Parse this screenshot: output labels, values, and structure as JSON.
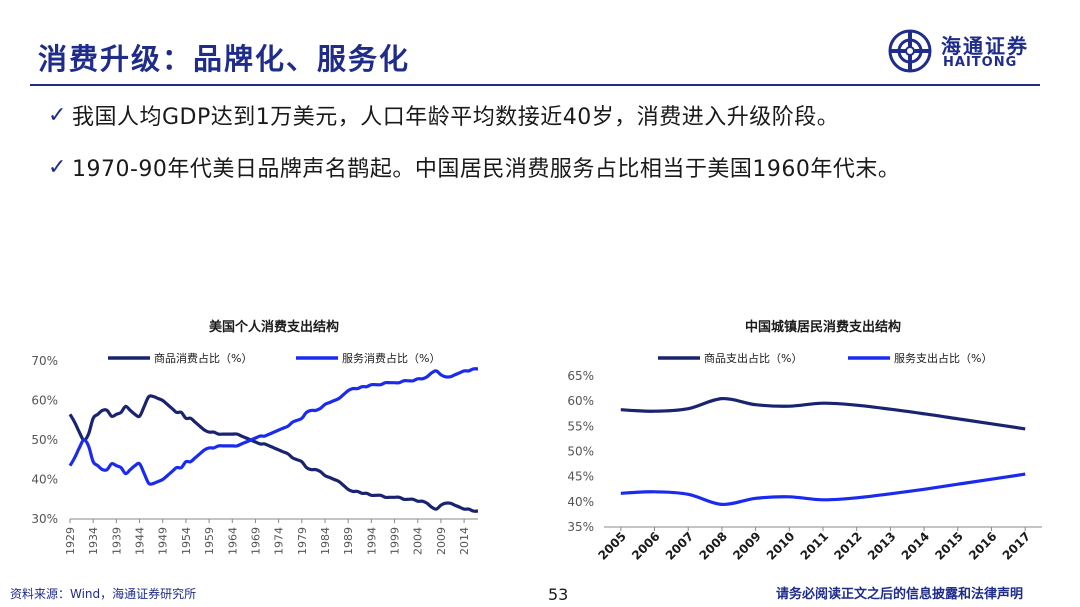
{
  "slide": {
    "title": "消费升级：品牌化、服务化",
    "bullets": [
      "我国人均GDP达到1万美元，人口年龄平均数接近40岁，消费进入升级阶段。",
      "1970-90年代美日品牌声名鹊起。中国居民消费服务占比相当于美国1960年代末。"
    ],
    "check_icon": "✓"
  },
  "logo": {
    "cn": "海通证券",
    "en": "HAITONG"
  },
  "footer": {
    "source": "资料来源：Wind，海通证券研究所",
    "page": "53",
    "disclaimer": "请务必阅读正文之后的信息披露和法律声明"
  },
  "colors": {
    "brand": "#1f2c8a",
    "goods": "#1a2370",
    "services": "#1a2bef"
  },
  "chart_data": [
    {
      "type": "line",
      "title": "美国个人消费支出结构",
      "ylim": [
        30,
        70
      ],
      "yticks": [
        "30%",
        "40%",
        "50%",
        "60%",
        "70%"
      ],
      "xlim": [
        1929,
        2017
      ],
      "xticks": [
        "1929",
        "1934",
        "1939",
        "1944",
        "1949",
        "1954",
        "1959",
        "1964",
        "1969",
        "1974",
        "1979",
        "1984",
        "1989",
        "1994",
        "1999",
        "2004",
        "2009",
        "2014"
      ],
      "legend_position": "top",
      "series": [
        {
          "name": "商品消费占比（%）",
          "x": [
            1929,
            1930,
            1931,
            1932,
            1933,
            1934,
            1935,
            1936,
            1937,
            1938,
            1939,
            1940,
            1941,
            1942,
            1943,
            1944,
            1945,
            1946,
            1947,
            1948,
            1949,
            1950,
            1951,
            1952,
            1953,
            1954,
            1955,
            1956,
            1957,
            1958,
            1959,
            1960,
            1961,
            1962,
            1963,
            1964,
            1965,
            1966,
            1967,
            1968,
            1969,
            1970,
            1971,
            1972,
            1973,
            1974,
            1975,
            1976,
            1977,
            1978,
            1979,
            1980,
            1981,
            1982,
            1983,
            1984,
            1985,
            1986,
            1987,
            1988,
            1989,
            1990,
            1991,
            1992,
            1993,
            1994,
            1995,
            1996,
            1997,
            1998,
            1999,
            2000,
            2001,
            2002,
            2003,
            2004,
            2005,
            2006,
            2007,
            2008,
            2009,
            2010,
            2011,
            2012,
            2013,
            2014,
            2015,
            2016,
            2017
          ],
          "values": [
            56.5,
            54.5,
            52,
            50,
            51.5,
            55.5,
            56.5,
            57.5,
            57.5,
            56,
            56.5,
            57,
            58.5,
            57.5,
            56.5,
            56,
            58.5,
            61,
            61,
            60.5,
            60,
            59,
            58,
            57,
            57,
            55.5,
            55.5,
            54.5,
            53.5,
            52.5,
            52,
            52,
            51.5,
            51.5,
            51.5,
            51.5,
            51.5,
            51,
            50.5,
            50,
            49.5,
            49,
            49,
            48.5,
            48,
            47.5,
            47,
            46.5,
            45.5,
            45,
            44.5,
            43,
            42.5,
            42.5,
            42,
            41,
            40.5,
            40,
            39.5,
            38.5,
            37.5,
            37,
            37,
            36.5,
            36.5,
            36,
            36,
            36,
            35.5,
            35.5,
            35.5,
            35.5,
            35,
            35,
            35,
            34.5,
            34.5,
            34,
            33,
            32.5,
            33.5,
            34,
            34,
            33.5,
            33,
            32.5,
            32.5,
            32,
            32
          ]
        },
        {
          "name": "服务消费占比（%）",
          "x": [
            1929,
            1930,
            1931,
            1932,
            1933,
            1934,
            1935,
            1936,
            1937,
            1938,
            1939,
            1940,
            1941,
            1942,
            1943,
            1944,
            1945,
            1946,
            1947,
            1948,
            1949,
            1950,
            1951,
            1952,
            1953,
            1954,
            1955,
            1956,
            1957,
            1958,
            1959,
            1960,
            1961,
            1962,
            1963,
            1964,
            1965,
            1966,
            1967,
            1968,
            1969,
            1970,
            1971,
            1972,
            1973,
            1974,
            1975,
            1976,
            1977,
            1978,
            1979,
            1980,
            1981,
            1982,
            1983,
            1984,
            1985,
            1986,
            1987,
            1988,
            1989,
            1990,
            1991,
            1992,
            1993,
            1994,
            1995,
            1996,
            1997,
            1998,
            1999,
            2000,
            2001,
            2002,
            2003,
            2004,
            2005,
            2006,
            2007,
            2008,
            2009,
            2010,
            2011,
            2012,
            2013,
            2014,
            2015,
            2016,
            2017
          ],
          "values": [
            43.5,
            45.5,
            48,
            50,
            48.5,
            44.5,
            43.5,
            42.5,
            42.5,
            44,
            43.5,
            43,
            41.5,
            42.5,
            43.5,
            44,
            41.5,
            39,
            39,
            39.5,
            40,
            41,
            42,
            43,
            43,
            44.5,
            44.5,
            45.5,
            46.5,
            47.5,
            48,
            48,
            48.5,
            48.5,
            48.5,
            48.5,
            48.5,
            49,
            49.5,
            50,
            50.5,
            51,
            51,
            51.5,
            52,
            52.5,
            53,
            53.5,
            54.5,
            55,
            55.5,
            57,
            57.5,
            57.5,
            58,
            59,
            59.5,
            60,
            60.5,
            61.5,
            62.5,
            63,
            63,
            63.5,
            63.5,
            64,
            64,
            64,
            64.5,
            64.5,
            64.5,
            64.5,
            65,
            65,
            65,
            65.5,
            65.5,
            66,
            67,
            67.5,
            66.5,
            66,
            66,
            66.5,
            67,
            67.5,
            67.5,
            68,
            68
          ]
        }
      ]
    },
    {
      "type": "line",
      "title": "中国城镇居民消费支出结构",
      "ylim": [
        35,
        65
      ],
      "yticks": [
        "35%",
        "40%",
        "45%",
        "50%",
        "55%",
        "60%",
        "65%"
      ],
      "categories": [
        "2005",
        "2006",
        "2007",
        "2008",
        "2009",
        "2010",
        "2011",
        "2012",
        "2013",
        "2014",
        "2015",
        "2016",
        "2017"
      ],
      "legend_position": "top",
      "series": [
        {
          "name": "商品支出占比（%）",
          "values": [
            58.3,
            58.0,
            58.5,
            60.5,
            59.3,
            59.0,
            59.6,
            59.2,
            58.4,
            57.5,
            56.5,
            55.5,
            54.5
          ]
        },
        {
          "name": "服务支出占比（%）",
          "values": [
            41.7,
            42.0,
            41.5,
            39.5,
            40.7,
            41.0,
            40.4,
            40.8,
            41.6,
            42.5,
            43.5,
            44.5,
            45.5
          ]
        }
      ]
    }
  ]
}
